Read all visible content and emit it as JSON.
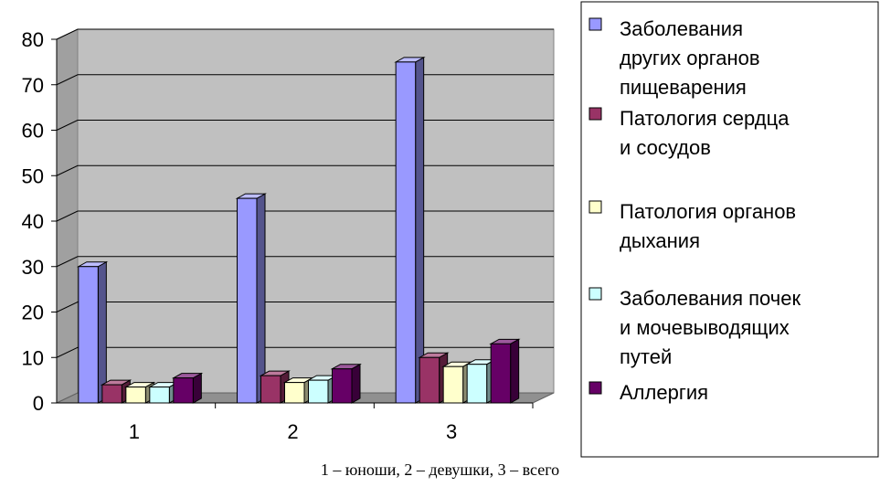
{
  "chart_data": {
    "type": "bar",
    "categories": [
      "1",
      "2",
      "3"
    ],
    "series": [
      {
        "name": "Заболевания других органов пищеварения",
        "values": [
          30,
          45,
          75
        ],
        "color": "#9999ff"
      },
      {
        "name": "Патология сердца и сосудов",
        "values": [
          4,
          6,
          10
        ],
        "color": "#993366"
      },
      {
        "name": "Патология органов дыхания",
        "values": [
          3.5,
          4.5,
          8
        ],
        "color": "#ffffcc"
      },
      {
        "name": "Заболевания почек и мочевыводящих путей",
        "values": [
          3.5,
          5,
          8.5
        ],
        "color": "#ccffff"
      },
      {
        "name": "Аллергия",
        "values": [
          5.5,
          7.5,
          13
        ],
        "color": "#660066"
      }
    ],
    "legend_lines": [
      [
        "Заболевания",
        "других органов",
        "пищеварения"
      ],
      [
        "Патология сердца",
        "и сосудов"
      ],
      [
        "Патология органов",
        "дыхания"
      ],
      [
        "Заболевания почек",
        "и мочевыводящих",
        "путей"
      ],
      [
        "Аллергия"
      ]
    ],
    "yticks": [
      "0",
      "10",
      "20",
      "30",
      "40",
      "50",
      "60",
      "70",
      "80"
    ],
    "ylim": [
      0,
      80
    ],
    "grid": true,
    "legend_position": "right",
    "wall_color": "#c0c0c0"
  },
  "caption": "1 – юноши, 2 – девушки, 3 – всего"
}
